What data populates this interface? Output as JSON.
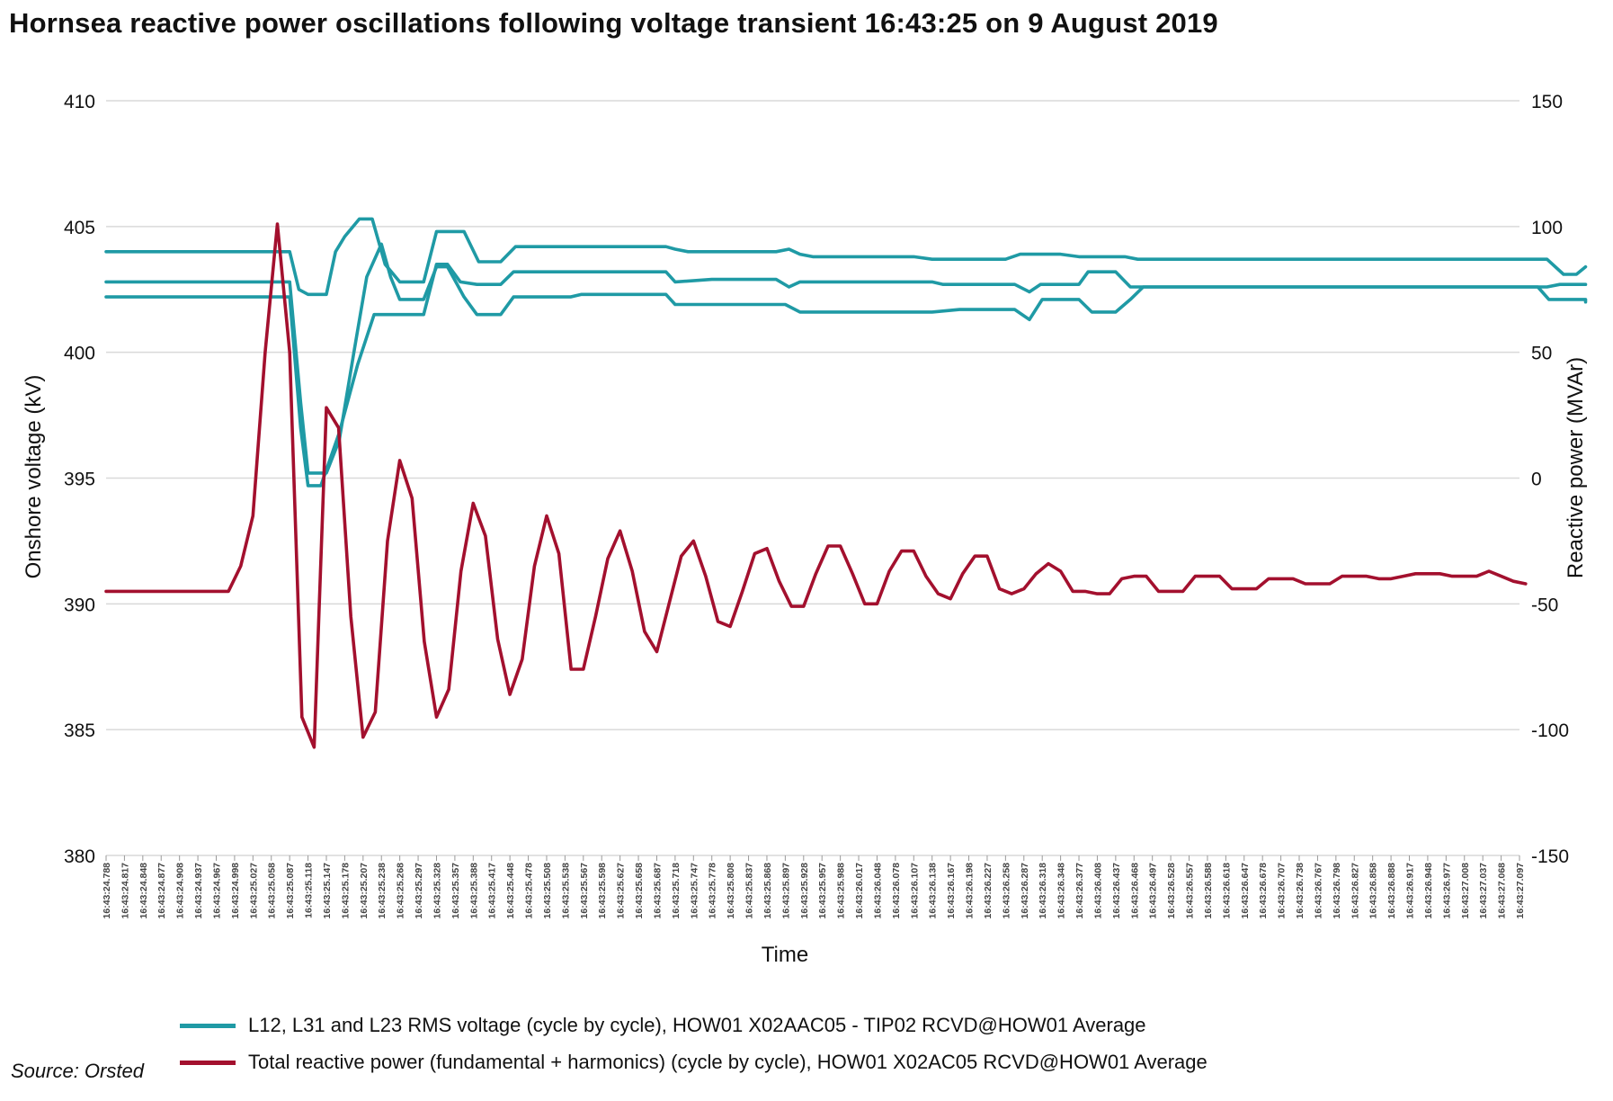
{
  "title": "Hornsea reactive power oscillations following voltage transient 16:43:25 on 9 August 2019",
  "source": "Source: Orsted",
  "colors": {
    "voltage": "#1f9aa5",
    "reactive": "#a3102e",
    "grid": "#d9d9d9",
    "axis": "#333333"
  },
  "chart_data": {
    "type": "line",
    "title": "Hornsea reactive power oscillations following voltage transient 16:43:25 on 9 August 2019",
    "xlabel": "Time",
    "ylabel_left": "Onshore voltage (kV)",
    "ylabel_right": "Reactive power (MVAr)",
    "ylim_left": [
      380,
      410
    ],
    "ylim_right": [
      -150,
      150
    ],
    "yticks_left": [
      380,
      385,
      390,
      395,
      400,
      405,
      410
    ],
    "yticks_right": [
      -150,
      -100,
      -50,
      0,
      50,
      100,
      150
    ],
    "grid": "horizontal",
    "legend_position": "bottom",
    "x_ticks": [
      "16:43:24.788",
      "16:43:24.817",
      "16:43:24.848",
      "16:43:24.877",
      "16:43:24.908",
      "16:43:24.937",
      "16:43:24.967",
      "16:43:24.998",
      "16:43:25.027",
      "16:43:25.058",
      "16:43:25.087",
      "16:43:25.118",
      "16:43:25.147",
      "16:43:25.178",
      "16:43:25.207",
      "16:43:25.238",
      "16:43:25.268",
      "16:43:25.297",
      "16:43:25.328",
      "16:43:25.357",
      "16:43:25.388",
      "16:43:25.417",
      "16:43:25.448",
      "16:43:25.478",
      "16:43:25.508",
      "16:43:25.538",
      "16:43:25.567",
      "16:43:25.598",
      "16:43:25.627",
      "16:43:25.658",
      "16:43:25.687",
      "16:43:25.718",
      "16:43:25.747",
      "16:43:25.778",
      "16:43:25.808",
      "16:43:25.837",
      "16:43:25.868",
      "16:43:25.897",
      "16:43:25.928",
      "16:43:25.957",
      "16:43:25.988",
      "16:43:26.017",
      "16:43:26.048",
      "16:43:26.078",
      "16:43:26.107",
      "16:43:26.138",
      "16:43:26.167",
      "16:43:26.198",
      "16:43:26.227",
      "16:43:26.258",
      "16:43:26.287",
      "16:43:26.318",
      "16:43:26.348",
      "16:43:26.377",
      "16:43:26.408",
      "16:43:26.437",
      "16:43:26.468",
      "16:43:26.497",
      "16:43:26.528",
      "16:43:26.557",
      "16:43:26.588",
      "16:43:26.618",
      "16:43:26.647",
      "16:43:26.678",
      "16:43:26.707",
      "16:43:26.738",
      "16:43:26.767",
      "16:43:26.798",
      "16:43:26.827",
      "16:43:26.858",
      "16:43:26.888",
      "16:43:26.917",
      "16:43:26.948",
      "16:43:26.977",
      "16:43:27.008",
      "16:43:27.037",
      "16:43:27.068",
      "16:43:27.097"
    ],
    "series": [
      {
        "name": "L12, L31 and L23 RMS voltage (cycle by cycle), HOW01 X02AAC05 - TIP02 RCVD@HOW01 Average",
        "axis": "left",
        "color": "#1f9aa5",
        "lines": [
          [
            [
              0,
              404.0
            ],
            [
              10,
              404.0
            ],
            [
              10.5,
              402.5
            ],
            [
              11,
              402.3
            ],
            [
              12,
              402.3
            ],
            [
              12.5,
              404.0
            ],
            [
              13,
              404.6
            ],
            [
              13.8,
              405.3
            ],
            [
              14.5,
              405.3
            ],
            [
              15.2,
              403.5
            ],
            [
              16,
              402.8
            ],
            [
              17.3,
              402.8
            ],
            [
              18,
              404.8
            ],
            [
              19.5,
              404.8
            ],
            [
              20.3,
              403.6
            ],
            [
              21.5,
              403.6
            ],
            [
              22.3,
              404.2
            ],
            [
              30.5,
              404.2
            ],
            [
              31,
              404.1
            ],
            [
              31.7,
              404.0
            ],
            [
              33,
              404.0
            ],
            [
              36.5,
              404.0
            ],
            [
              37.2,
              404.1
            ],
            [
              37.8,
              403.9
            ],
            [
              38.5,
              403.8
            ],
            [
              44,
              403.8
            ],
            [
              45,
              403.7
            ],
            [
              49,
              403.7
            ],
            [
              49.8,
              403.9
            ],
            [
              52,
              403.9
            ],
            [
              53,
              403.8
            ],
            [
              55.5,
              403.8
            ],
            [
              56.2,
              403.7
            ],
            [
              78.5,
              403.7
            ],
            [
              79.4,
              403.1
            ],
            [
              80.1,
              403.1
            ],
            [
              80.6,
              403.4
            ]
          ],
          [
            [
              0,
              402.8
            ],
            [
              10,
              402.8
            ],
            [
              10.6,
              398.0
            ],
            [
              11,
              395.2
            ],
            [
              12,
              395.2
            ],
            [
              12.7,
              396.5
            ],
            [
              13.5,
              400.0
            ],
            [
              14.2,
              403.0
            ],
            [
              15,
              404.3
            ],
            [
              15.5,
              403.0
            ],
            [
              16,
              402.1
            ],
            [
              17.3,
              402.1
            ],
            [
              18,
              403.4
            ],
            [
              18.6,
              403.4
            ],
            [
              19.5,
              402.2
            ],
            [
              20.2,
              401.5
            ],
            [
              21.5,
              401.5
            ],
            [
              22.2,
              402.2
            ],
            [
              25.3,
              402.2
            ],
            [
              25.9,
              402.3
            ],
            [
              30.5,
              402.3
            ],
            [
              31,
              401.9
            ],
            [
              37,
              401.9
            ],
            [
              37.8,
              401.6
            ],
            [
              45,
              401.6
            ],
            [
              46.5,
              401.7
            ],
            [
              49.5,
              401.7
            ],
            [
              50.3,
              401.3
            ],
            [
              51,
              402.1
            ],
            [
              53,
              402.1
            ],
            [
              53.7,
              401.6
            ],
            [
              55,
              401.6
            ],
            [
              55.8,
              402.1
            ],
            [
              56.5,
              402.6
            ],
            [
              78,
              402.6
            ],
            [
              78.6,
              402.1
            ],
            [
              80.6,
              402.1
            ],
            [
              80.6,
              402.0
            ]
          ],
          [
            [
              0,
              402.2
            ],
            [
              10,
              402.2
            ],
            [
              10.6,
              397.0
            ],
            [
              11,
              394.7
            ],
            [
              11.7,
              394.7
            ],
            [
              12.7,
              396.8
            ],
            [
              13.7,
              399.5
            ],
            [
              14.6,
              401.5
            ],
            [
              17.3,
              401.5
            ],
            [
              18,
              403.5
            ],
            [
              18.6,
              403.5
            ],
            [
              19.3,
              402.8
            ],
            [
              20.2,
              402.7
            ],
            [
              21.5,
              402.7
            ],
            [
              22.2,
              403.2
            ],
            [
              30.5,
              403.2
            ],
            [
              31,
              402.8
            ],
            [
              33,
              402.9
            ],
            [
              36.5,
              402.9
            ],
            [
              37.2,
              402.6
            ],
            [
              37.8,
              402.8
            ],
            [
              45,
              402.8
            ],
            [
              45.6,
              402.7
            ],
            [
              49.5,
              402.7
            ],
            [
              50.3,
              402.4
            ],
            [
              50.9,
              402.7
            ],
            [
              53,
              402.7
            ],
            [
              53.5,
              403.2
            ],
            [
              55,
              403.2
            ],
            [
              55.8,
              402.6
            ],
            [
              56.5,
              402.6
            ],
            [
              78.5,
              402.6
            ],
            [
              79.2,
              402.7
            ],
            [
              80.6,
              402.7
            ]
          ]
        ]
      },
      {
        "name": "Total reactive power (fundamental + harmonics) (cycle by cycle), HOW01 X02AC05 RCVD@HOW01 Average",
        "axis": "right",
        "color": "#a3102e",
        "lines": [
          [
            [
              0,
              -45
            ],
            [
              10,
              -45
            ],
            [
              11,
              -35
            ],
            [
              12,
              -15
            ],
            [
              13,
              50
            ],
            [
              14,
              101
            ],
            [
              15,
              50
            ],
            [
              16,
              -95
            ],
            [
              17,
              -107
            ],
            [
              18,
              28
            ],
            [
              19,
              20
            ],
            [
              20,
              -55
            ],
            [
              21,
              -103
            ],
            [
              22,
              -93
            ],
            [
              23,
              -25
            ],
            [
              24,
              7
            ],
            [
              25,
              -8
            ],
            [
              26,
              -65
            ],
            [
              27,
              -95
            ],
            [
              28,
              -84
            ],
            [
              29,
              -37
            ],
            [
              30,
              -10
            ],
            [
              31,
              -23
            ],
            [
              32,
              -64
            ],
            [
              33,
              -86
            ],
            [
              34,
              -72
            ],
            [
              35,
              -35
            ],
            [
              36,
              -15
            ],
            [
              37,
              -30
            ],
            [
              38,
              -76
            ],
            [
              39,
              -76
            ],
            [
              40,
              -55
            ],
            [
              41,
              -32
            ],
            [
              42,
              -21
            ],
            [
              43,
              -37
            ],
            [
              44,
              -61
            ],
            [
              45,
              -69
            ],
            [
              46,
              -50
            ],
            [
              47,
              -31
            ],
            [
              48,
              -25
            ],
            [
              49,
              -39
            ],
            [
              50,
              -57
            ],
            [
              51,
              -59
            ],
            [
              52,
              -45
            ],
            [
              53,
              -30
            ],
            [
              54,
              -28
            ],
            [
              55,
              -41
            ],
            [
              56,
              -51
            ],
            [
              57,
              -51
            ],
            [
              58,
              -38
            ],
            [
              59,
              -27
            ],
            [
              60,
              -27
            ],
            [
              61,
              -38
            ],
            [
              62,
              -50
            ],
            [
              63,
              -50
            ],
            [
              64,
              -37
            ],
            [
              65,
              -29
            ],
            [
              66,
              -29
            ],
            [
              67,
              -39
            ],
            [
              68,
              -46
            ],
            [
              69,
              -48
            ],
            [
              70,
              -38
            ],
            [
              71,
              -31
            ],
            [
              72,
              -31
            ],
            [
              73,
              -44
            ],
            [
              74,
              -46
            ],
            [
              75,
              -44
            ],
            [
              76,
              -38
            ],
            [
              77,
              -34
            ],
            [
              78,
              -37
            ],
            [
              79,
              -45
            ],
            [
              80,
              -45
            ],
            [
              81,
              -46
            ],
            [
              82,
              -46
            ],
            [
              83,
              -40
            ],
            [
              84,
              -39
            ],
            [
              85,
              -39
            ],
            [
              86,
              -45
            ],
            [
              87,
              -45
            ],
            [
              88,
              -45
            ],
            [
              89,
              -39
            ],
            [
              90,
              -39
            ],
            [
              91,
              -39
            ],
            [
              92,
              -44
            ],
            [
              93,
              -44
            ],
            [
              94,
              -44
            ],
            [
              95,
              -40
            ],
            [
              96,
              -40
            ],
            [
              97,
              -40
            ],
            [
              98,
              -42
            ],
            [
              99,
              -42
            ],
            [
              100,
              -42
            ],
            [
              101,
              -39
            ],
            [
              102,
              -39
            ],
            [
              103,
              -39
            ],
            [
              104,
              -40
            ],
            [
              105,
              -40
            ],
            [
              106,
              -39
            ],
            [
              107,
              -38
            ],
            [
              108,
              -38
            ],
            [
              109,
              -38
            ],
            [
              110,
              -39
            ],
            [
              111,
              -39
            ],
            [
              112,
              -39
            ],
            [
              113,
              -37
            ],
            [
              114,
              -39
            ],
            [
              115,
              -41
            ],
            [
              116,
              -42
            ]
          ]
        ]
      }
    ]
  },
  "legend": [
    {
      "label": "L12, L31 and L23 RMS voltage (cycle by cycle), HOW01 X02AAC05 - TIP02 RCVD@HOW01 Average",
      "color": "#1f9aa5"
    },
    {
      "label": "Total reactive power (fundamental + harmonics) (cycle by cycle), HOW01 X02AC05 RCVD@HOW01 Average",
      "color": "#a3102e"
    }
  ]
}
